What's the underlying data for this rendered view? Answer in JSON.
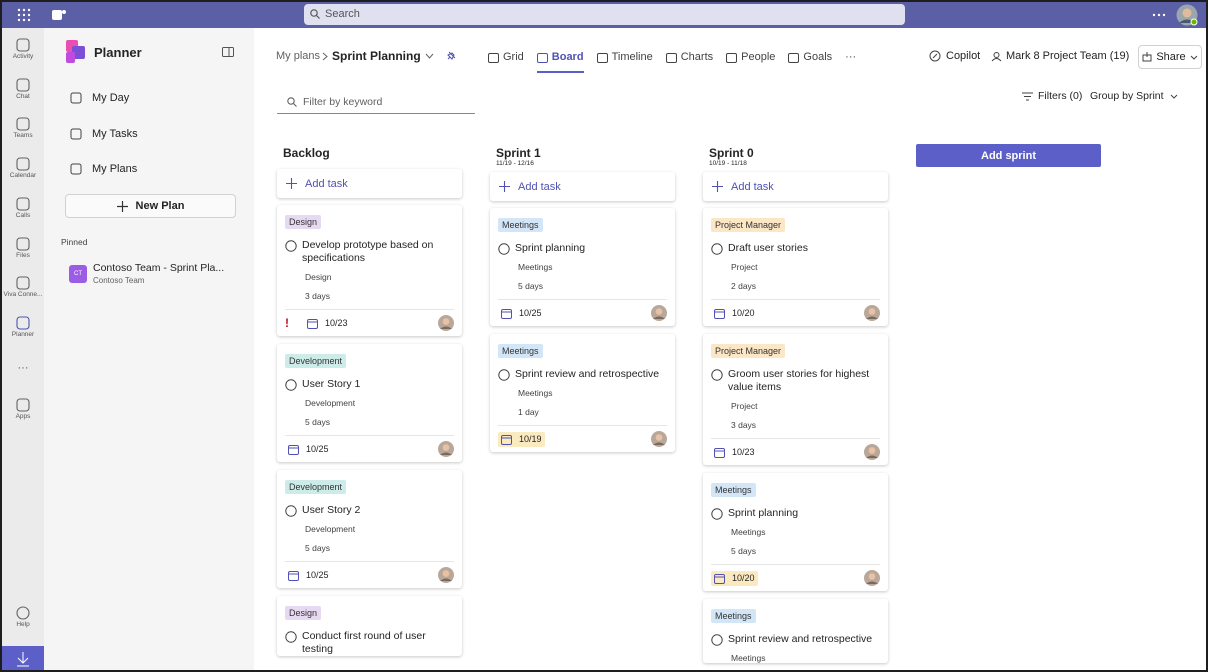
{
  "top_bar": {
    "search": "Search"
  },
  "app_rail": {
    "items": [
      "Activity",
      "Chat",
      "Teams",
      "Calendar",
      "Calls",
      "Files",
      "Viva Conne...",
      "Planner"
    ],
    "more": "···",
    "apps": "Apps",
    "help": "Help"
  },
  "sidebar": {
    "title": "Planner",
    "nav": [
      "My Day",
      "My Tasks",
      "My Plans"
    ],
    "new_plan": "New Plan",
    "pinned_label": "Pinned",
    "pinned": {
      "badge": "CT",
      "name": "Contoso Team - Sprint Pla...",
      "team": "Contoso Team"
    }
  },
  "header": {
    "breadcrumb": "My plans",
    "plan": "Sprint Planning",
    "tabs": [
      "Grid",
      "Board",
      "Timeline",
      "Charts",
      "People",
      "Goals"
    ],
    "active_tab": 1,
    "more": "···",
    "copilot": "Copilot",
    "team": "Mark 8 Project Team (19)",
    "share": "Share"
  },
  "toolbar": {
    "filter_placeholder": "Filter by keyword",
    "filters": "Filters (0)",
    "group_by": "Group by Sprint"
  },
  "board": {
    "add_sprint": "Add sprint",
    "columns": [
      {
        "title": "Backlog",
        "add_task": "Add task",
        "cards": [
          {
            "label": "Design",
            "label_color": "#e7d9f1",
            "title": "Develop prototype based on specifications",
            "bucket": "Design",
            "duration": "3 days",
            "priority": "!",
            "date": "10/23"
          },
          {
            "label": "Development",
            "label_color": "#cdebe8",
            "title": "User Story 1",
            "bucket": "Development",
            "duration": "5 days",
            "date": "10/25"
          },
          {
            "label": "Development",
            "label_color": "#cdebe8",
            "title": "User Story 2",
            "bucket": "Development",
            "duration": "5 days",
            "date": "10/25"
          },
          {
            "label": "Design",
            "label_color": "#e7d9f1",
            "title": "Conduct first round of user testing"
          }
        ]
      },
      {
        "title": "Sprint 1",
        "dates": "11/19 - 12/16",
        "add_task": "Add task",
        "cards": [
          {
            "label": "Meetings",
            "label_color": "#d3e6f7",
            "title": "Sprint planning",
            "bucket": "Meetings",
            "duration": "5 days",
            "date": "10/25"
          },
          {
            "label": "Meetings",
            "label_color": "#d3e6f7",
            "title": "Sprint review and retrospective",
            "bucket": "Meetings",
            "duration": "1 day",
            "date": "10/19",
            "date_highlight": true
          }
        ]
      },
      {
        "title": "Sprint 0",
        "dates": "10/19 - 11/18",
        "add_task": "Add task",
        "cards": [
          {
            "label": "Project Manager",
            "label_color": "#fbe6c5",
            "title": "Draft user stories",
            "bucket": "Project",
            "duration": "2 days",
            "date": "10/20"
          },
          {
            "label": "Project Manager",
            "label_color": "#fbe6c5",
            "title": "Groom user stories for highest value items",
            "bucket": "Project",
            "duration": "3 days",
            "date": "10/23"
          },
          {
            "label": "Meetings",
            "label_color": "#d3e6f7",
            "title": "Sprint planning",
            "bucket": "Meetings",
            "duration": "5 days",
            "date": "10/20",
            "date_highlight": true
          },
          {
            "label": "Meetings",
            "label_color": "#d3e6f7",
            "title": "Sprint review and retrospective",
            "bucket": "Meetings"
          }
        ]
      }
    ]
  }
}
